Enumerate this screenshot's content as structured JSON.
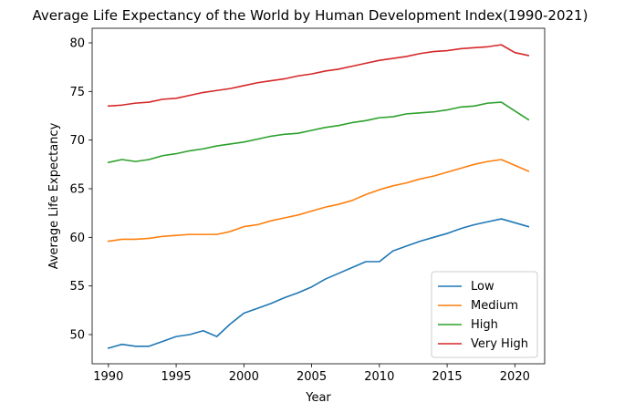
{
  "chart_data": {
    "type": "line",
    "title": "Average Life Expectancy of the World by Human Development Index(1990-2021)",
    "xlabel": "Year",
    "ylabel": "Average Life Expectancy",
    "xlim": [
      1988.8,
      2022.2
    ],
    "ylim": [
      47.0,
      81.5
    ],
    "xticks": [
      1990,
      1995,
      2000,
      2005,
      2010,
      2015,
      2020
    ],
    "yticks": [
      50,
      55,
      60,
      65,
      70,
      75,
      80
    ],
    "grid": false,
    "legend_position": "lower-right",
    "x": [
      1990,
      1991,
      1992,
      1993,
      1994,
      1995,
      1996,
      1997,
      1998,
      1999,
      2000,
      2001,
      2002,
      2003,
      2004,
      2005,
      2006,
      2007,
      2008,
      2009,
      2010,
      2011,
      2012,
      2013,
      2014,
      2015,
      2016,
      2017,
      2018,
      2019,
      2020,
      2021
    ],
    "series": [
      {
        "name": "Low",
        "color": "#1f77b4",
        "values": [
          48.6,
          49.0,
          48.8,
          48.8,
          49.3,
          49.8,
          50.0,
          50.4,
          49.8,
          51.1,
          52.2,
          52.7,
          53.2,
          53.8,
          54.3,
          54.9,
          55.7,
          56.3,
          56.9,
          57.5,
          57.5,
          58.6,
          59.1,
          59.6,
          60.0,
          60.4,
          60.9,
          61.3,
          61.6,
          61.9,
          61.5,
          61.1
        ]
      },
      {
        "name": "Medium",
        "color": "#ff7f0e",
        "values": [
          59.6,
          59.8,
          59.8,
          59.9,
          60.1,
          60.2,
          60.3,
          60.3,
          60.3,
          60.6,
          61.1,
          61.3,
          61.7,
          62.0,
          62.3,
          62.7,
          63.1,
          63.4,
          63.8,
          64.4,
          64.9,
          65.3,
          65.6,
          66.0,
          66.3,
          66.7,
          67.1,
          67.5,
          67.8,
          68.0,
          67.4,
          66.8
        ]
      },
      {
        "name": "High",
        "color": "#2ca02c",
        "values": [
          67.7,
          68.0,
          67.8,
          68.0,
          68.4,
          68.6,
          68.9,
          69.1,
          69.4,
          69.6,
          69.8,
          70.1,
          70.4,
          70.6,
          70.7,
          71.0,
          71.3,
          71.5,
          71.8,
          72.0,
          72.3,
          72.4,
          72.7,
          72.8,
          72.9,
          73.1,
          73.4,
          73.5,
          73.8,
          73.9,
          73.0,
          72.1
        ]
      },
      {
        "name": "Very High",
        "color": "#d62728",
        "values": [
          73.5,
          73.6,
          73.8,
          73.9,
          74.2,
          74.3,
          74.6,
          74.9,
          75.1,
          75.3,
          75.6,
          75.9,
          76.1,
          76.3,
          76.6,
          76.8,
          77.1,
          77.3,
          77.6,
          77.9,
          78.2,
          78.4,
          78.6,
          78.9,
          79.1,
          79.2,
          79.4,
          79.5,
          79.6,
          79.8,
          79.0,
          78.7
        ]
      }
    ]
  }
}
